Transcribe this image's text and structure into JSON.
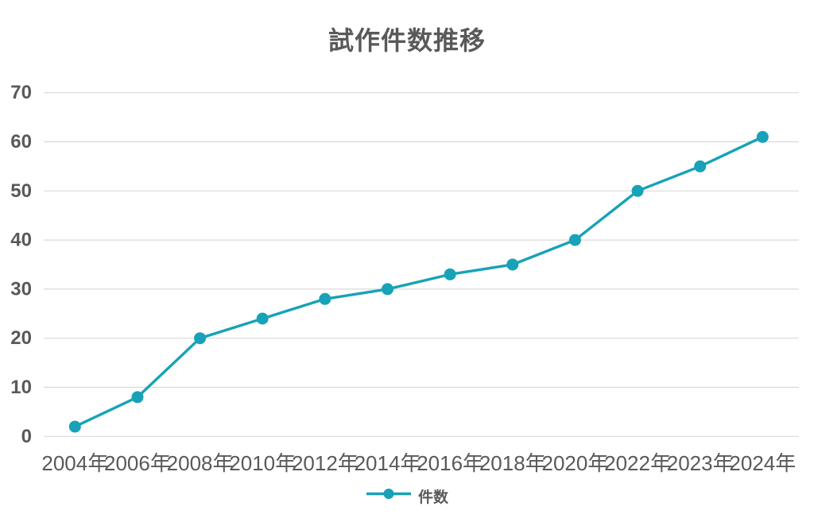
{
  "chart_data": {
    "type": "line",
    "title": "試作件数推移",
    "categories": [
      "2004年",
      "2006年",
      "2008年",
      "2010年",
      "2012年",
      "2014年",
      "2016年",
      "2018年",
      "2020年",
      "2022年",
      "2023年",
      "2024年"
    ],
    "series": [
      {
        "name": "件数",
        "values": [
          2,
          8,
          20,
          24,
          28,
          30,
          33,
          35,
          40,
          50,
          55,
          61
        ]
      }
    ],
    "xlabel": "",
    "ylabel": "",
    "ylim": [
      0,
      70
    ],
    "yticks": [
      0,
      10,
      20,
      30,
      40,
      50,
      60,
      70
    ],
    "grid": true,
    "legend_position": "bottom",
    "colors": {
      "line": "#17a2b8",
      "text": "#595959",
      "gridline": "#d9d9d9",
      "background": "#ffffff"
    }
  }
}
